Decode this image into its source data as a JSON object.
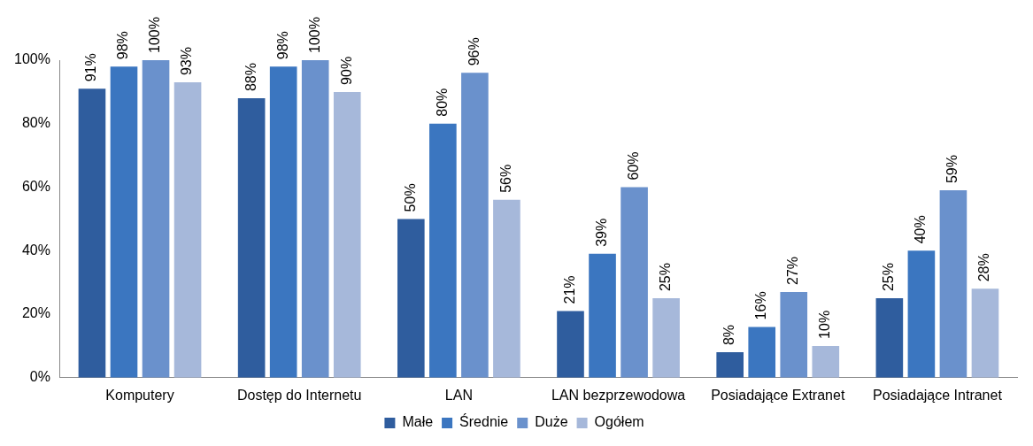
{
  "chart_data": {
    "type": "bar",
    "categories": [
      "Komputery",
      "Dostęp do Internetu",
      "LAN",
      "LAN bezprzewodowa",
      "Posiadające Extranet",
      "Posiadające Intranet"
    ],
    "series": [
      {
        "name": "Małe",
        "color": "#2f5d9e",
        "values": [
          91,
          88,
          50,
          21,
          8,
          25
        ],
        "value_labels": [
          "91%",
          "88%",
          "50%",
          "21%",
          "8%",
          "25%"
        ]
      },
      {
        "name": "Średnie",
        "color": "#3b76c0",
        "values": [
          98,
          98,
          80,
          39,
          16,
          40
        ],
        "value_labels": [
          "98%",
          "98%",
          "80%",
          "39%",
          "16%",
          "40%"
        ]
      },
      {
        "name": "Duże",
        "color": "#6a91cc",
        "values": [
          100,
          100,
          96,
          60,
          27,
          59
        ],
        "value_labels": [
          "100%",
          "100%",
          "96%",
          "60%",
          "27%",
          "59%"
        ]
      },
      {
        "name": "Ogółem",
        "color": "#a6b8da",
        "values": [
          93,
          90,
          56,
          25,
          10,
          28
        ],
        "value_labels": [
          "93%",
          "90%",
          "56%",
          "25%",
          "10%",
          "28%"
        ]
      }
    ],
    "ylim": [
      0,
      100
    ],
    "yticks": [
      {
        "value": 0,
        "label": "0%"
      },
      {
        "value": 20,
        "label": "20%"
      },
      {
        "value": 40,
        "label": "40%"
      },
      {
        "value": 60,
        "label": "60%"
      },
      {
        "value": 80,
        "label": "80%"
      },
      {
        "value": 100,
        "label": "100%"
      }
    ],
    "grid": false,
    "legend": "bottom"
  }
}
